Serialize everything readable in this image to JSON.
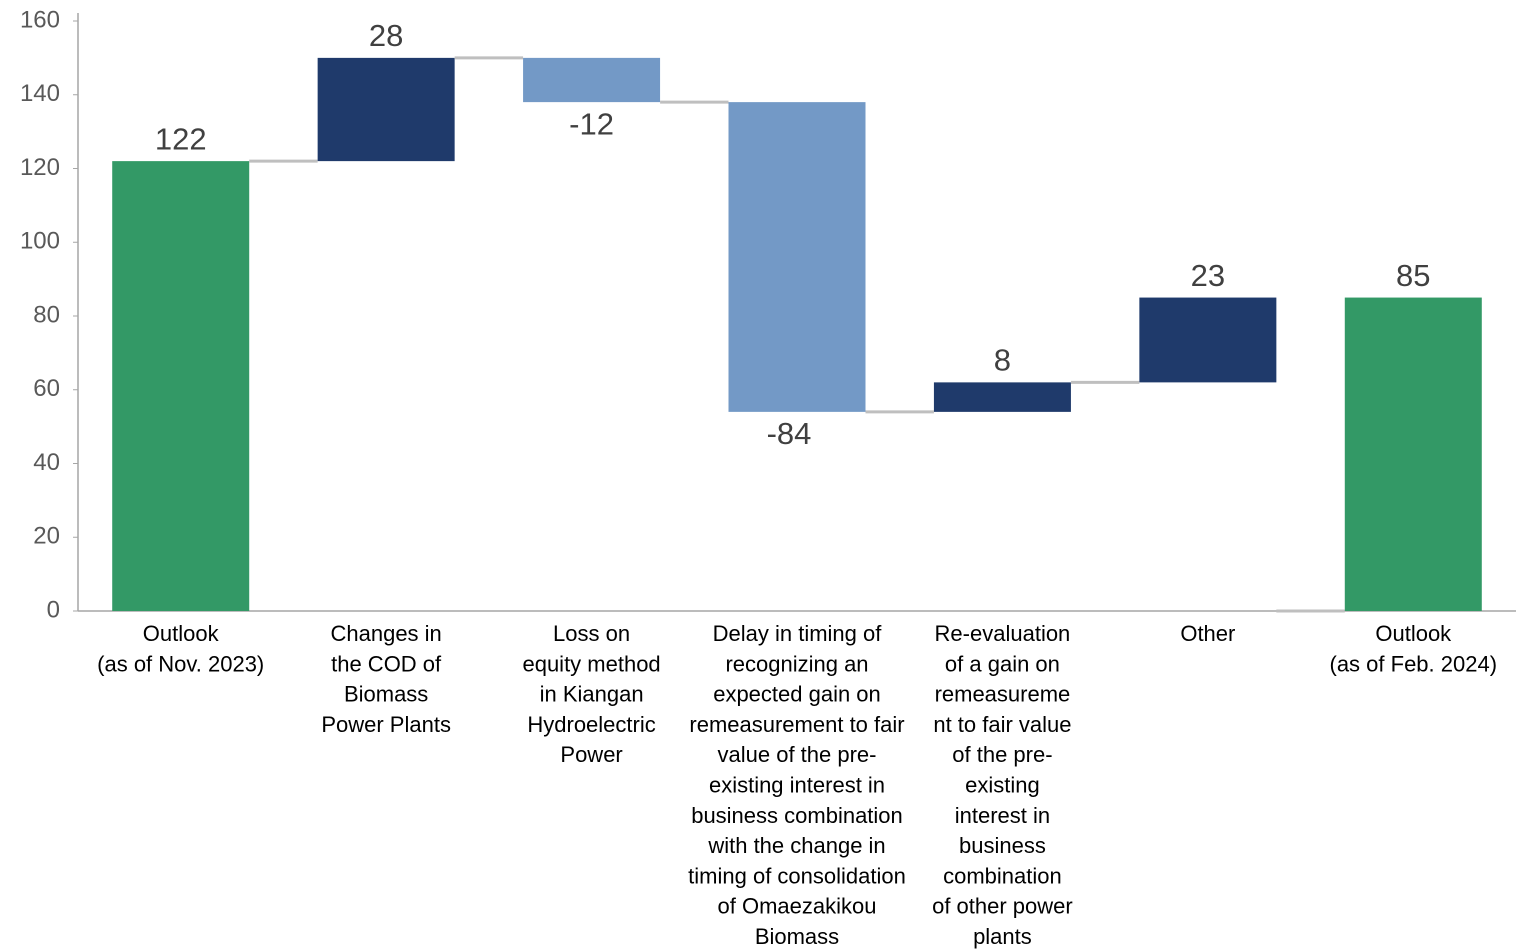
{
  "chart_data": {
    "type": "waterfall",
    "categories": [
      "Outlook\n(as of Nov. 2023)",
      "Changes in\nthe COD of\nBiomass\nPower Plants",
      "Loss on\nequity method\nin Kiangan\nHydroelectric\nPower",
      "Delay in timing of\nrecognizing an\nexpected gain on\nremeasurement to fair\nvalue of the pre-\nexisting interest in\nbusiness combination\nwith the change in\ntiming of consolidation\nof Omaezakikou\nBiomass",
      "Re-evaluation\nof a gain on\nremeasureme\nnt to fair value\nof the pre-\nexisting\ninterest in\nbusiness\ncombination\nof other power\nplants",
      "Other",
      "Outlook\n(as of Feb. 2024)"
    ],
    "values": [
      122,
      28,
      -12,
      -84,
      8,
      23,
      85
    ],
    "measure": [
      "absolute",
      "relative",
      "relative",
      "relative",
      "relative",
      "relative",
      "absolute"
    ],
    "colors": [
      "#339966",
      "#1f3a6b",
      "#7399c6",
      "#7399c6",
      "#1f3a6b",
      "#1f3a6b",
      "#339966"
    ],
    "ylim": [
      0,
      160
    ],
    "yticks": [
      0,
      20,
      40,
      60,
      80,
      100,
      120,
      140,
      160
    ],
    "grid": false
  }
}
